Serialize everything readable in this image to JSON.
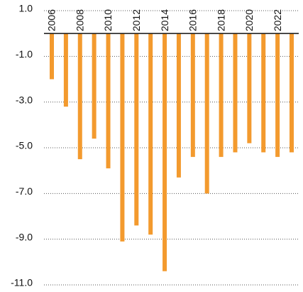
{
  "chart_data": {
    "type": "bar",
    "categories": [
      "2006",
      null,
      "2008",
      null,
      "2010",
      null,
      "2012",
      null,
      "2014",
      null,
      "2016",
      null,
      "2018",
      null,
      "2020",
      null,
      "2022",
      null
    ],
    "values": [
      -2.0,
      -3.2,
      -5.5,
      -4.6,
      -5.9,
      -9.1,
      -8.4,
      -8.8,
      -10.4,
      -6.3,
      -5.4,
      -7.0,
      -5.4,
      -5.2,
      -4.8,
      -5.2,
      -5.4,
      -5.2
    ],
    "color": "#f39a2e",
    "ylim": [
      -11.0,
      1.0
    ],
    "yticks": [
      {
        "value": 1,
        "label": "1.0"
      },
      {
        "value": -1,
        "label": "-1.0"
      },
      {
        "value": -3,
        "label": "-3.0"
      },
      {
        "value": -5,
        "label": "-5.0"
      },
      {
        "value": -7,
        "label": "-7.0"
      },
      {
        "value": -9,
        "label": "-9.0"
      },
      {
        "value": -11,
        "label": "-11.0"
      }
    ],
    "grid": true
  }
}
